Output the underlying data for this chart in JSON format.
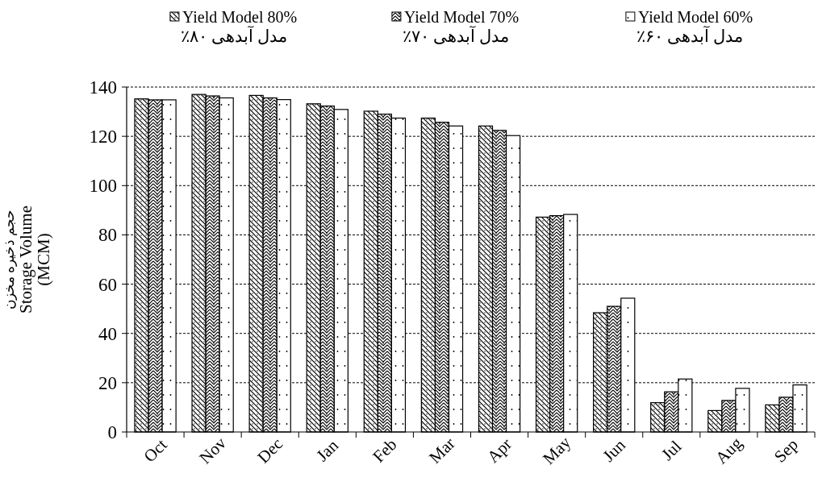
{
  "chart_data": {
    "type": "bar",
    "categories": [
      "Oct",
      "Nov",
      "Dec",
      "Jan",
      "Feb",
      "Mar",
      "Apr",
      "May",
      "Jun",
      "Jul",
      "Aug",
      "Sep"
    ],
    "series": [
      {
        "name": "Yield Model 80%\nمدل آبدهی ۸۰٪",
        "color": "#000000",
        "values": [
          135.2,
          137,
          136.6,
          133.2,
          130.2,
          127.4,
          124.2,
          87.2,
          48.4,
          11.9,
          8.7,
          11
        ]
      },
      {
        "name": "Yield Model 70%\nمدل آبدهی ۷۰٪",
        "color": "#000000",
        "values": [
          134.8,
          136.4,
          135.6,
          132.3,
          129,
          125.7,
          122.4,
          87.8,
          51,
          16.3,
          12.8,
          14.1
        ]
      },
      {
        "name": "Yield Model 60%\nمدل آبدهی ۶۰٪",
        "color": "#000000",
        "values": [
          134.8,
          135.6,
          134.9,
          130.9,
          127.4,
          124.2,
          120.3,
          88.3,
          54.3,
          21.5,
          17.7,
          19.1
        ]
      }
    ],
    "ylabel": "حجم ذخیره مخزن\nStorage Volume\n(MCM)",
    "ylim": [
      0,
      140
    ],
    "yticks": [
      0,
      20,
      40,
      60,
      80,
      100,
      120,
      140
    ],
    "grid": "y",
    "legend": "top"
  }
}
